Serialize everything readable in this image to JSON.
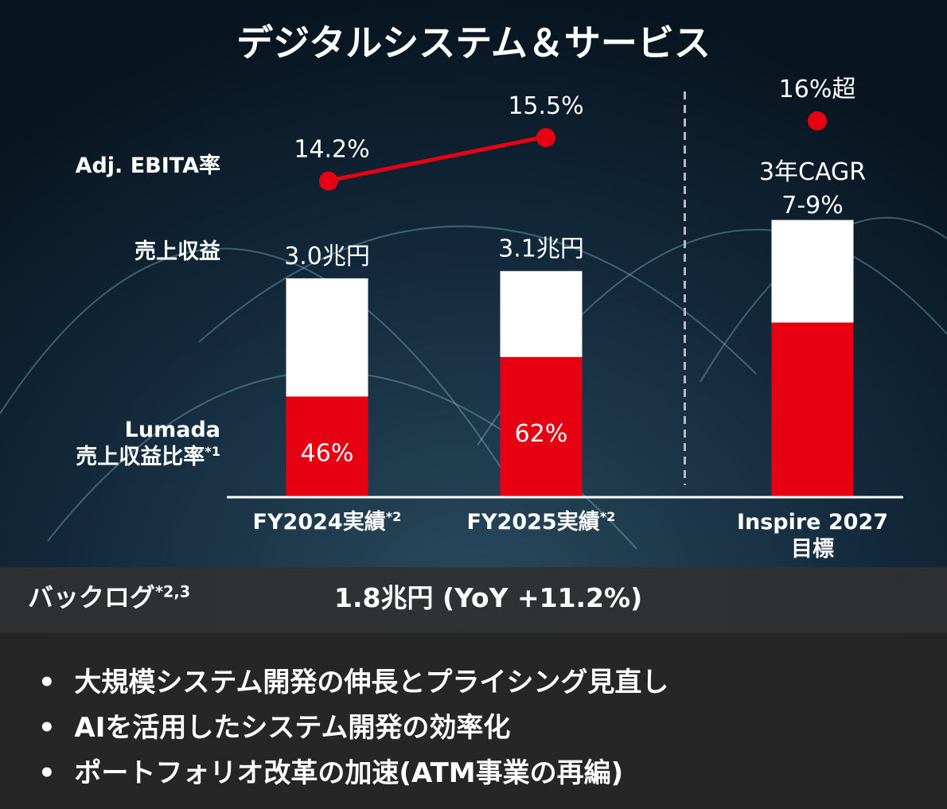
{
  "title": "デジタルシステム＆サービス",
  "chart_data": {
    "type": "bar",
    "categories": [
      "FY2024実績",
      "FY2025実績",
      "Inspire 2027\n目標"
    ],
    "category_notes": [
      "*2",
      "*2",
      null
    ],
    "divider_before": 2,
    "series": [
      {
        "name": "売上収益",
        "type": "bar",
        "color": "#ffffff",
        "values": [
          3.0,
          3.1,
          3.8
        ],
        "value_labels": [
          "3.0兆円",
          "3.1兆円",
          null
        ]
      },
      {
        "name": "Lumada\n売上収益比率",
        "note": "*1",
        "type": "bar_share",
        "color": "#e60012",
        "values": [
          46,
          62,
          63
        ],
        "value_labels": [
          "46%",
          "62%",
          null
        ]
      },
      {
        "name": "Adj. EBITA率",
        "type": "line",
        "color": "#e60012",
        "values": [
          14.2,
          15.5,
          16
        ],
        "value_labels": [
          "14.2%",
          "15.5%",
          "16%超"
        ]
      }
    ],
    "target_note": "3年CAGR\n7-9%"
  },
  "backlog": {
    "label": "バックログ",
    "note": "*2,3",
    "value": "1.8兆円 (YoY +11.2%)"
  },
  "bullets": [
    "大規模システム開発の伸長とプライシング見直し",
    "AIを活用したシステム開発の効率化",
    "ポートフォリオ改革の加速(ATM事業の再編)"
  ]
}
